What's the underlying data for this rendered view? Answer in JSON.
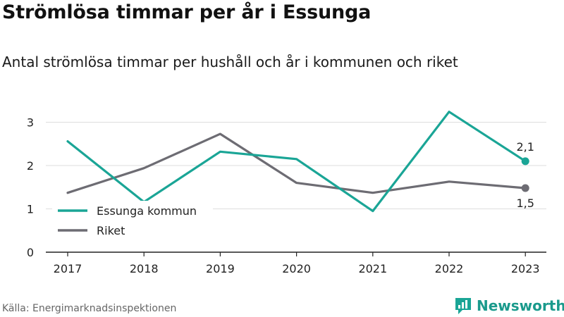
{
  "title": "Strömlösa timmar per år i Essunga",
  "subtitle": "Antal strömlösa timmar per hushåll och år i kommunen och riket",
  "source": "Källa: Energimarknadsinspektionen",
  "brand": {
    "name": "Newsworthy",
    "icon": "newsworthy-logo-icon"
  },
  "colors": {
    "essunga": "#1aa596",
    "riket": "#6d6c73",
    "grid": "#dedede",
    "axis": "#222222"
  },
  "chart_data": {
    "type": "line",
    "categories": [
      "2017",
      "2018",
      "2019",
      "2020",
      "2021",
      "2022",
      "2023"
    ],
    "series": [
      {
        "name": "Essunga kommun",
        "values": [
          2.56,
          1.16,
          2.32,
          2.15,
          0.95,
          3.24,
          2.1
        ],
        "color": "#1aa596",
        "end_label": "2,1"
      },
      {
        "name": "Riket",
        "values": [
          1.37,
          1.94,
          2.73,
          1.6,
          1.37,
          1.63,
          1.48
        ],
        "color": "#6d6c73",
        "end_label": "1,5"
      }
    ],
    "y_ticks": [
      "0",
      "1",
      "2",
      "3"
    ],
    "ylim": [
      0,
      3.5
    ],
    "grid": true,
    "legend": "bottom-left"
  }
}
